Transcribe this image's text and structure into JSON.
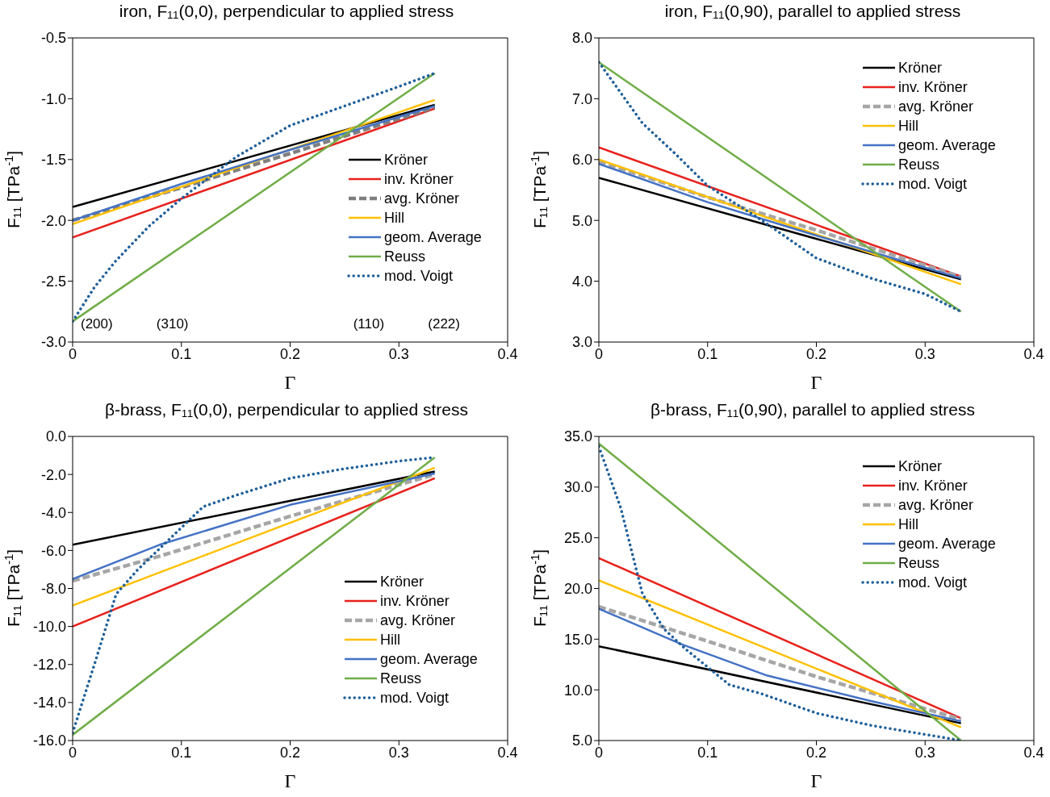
{
  "chart_data": [
    {
      "type": "line",
      "title": "iron, F₁₁(0,0), perpendicular to applied stress",
      "xlabel": "Γ",
      "ylabel": "F₁₁ [TPa$^{-1}$]",
      "xlim": [
        0,
        0.4
      ],
      "xticks": [
        0,
        0.1,
        0.2,
        0.3,
        0.4
      ],
      "ylim": [
        -3,
        -0.5
      ],
      "yticks": [
        {
          "value": -3,
          "label": "-3.0"
        },
        {
          "value": -2.5,
          "label": "-2.5"
        },
        {
          "value": -2,
          "label": "-2.0"
        },
        {
          "value": -1.5,
          "label": "-1.5"
        },
        {
          "value": -1,
          "label": "-1.0"
        },
        {
          "value": -0.5,
          "label": "-0.5"
        }
      ],
      "grid": false,
      "legend": "right",
      "marker": "none",
      "annotations": [
        "(200)",
        "(310)",
        "(110)",
        "(222)"
      ],
      "series": [
        {
          "name": "Kröner",
          "color": "#000000",
          "line_style": "solid",
          "x": [
            0,
            0.333
          ],
          "values": [
            -1.89,
            -1.05
          ]
        },
        {
          "name": "inv. Kröner",
          "color": "#e8211c",
          "line_style": "solid",
          "x": [
            0,
            0.333
          ],
          "values": [
            -2.14,
            -1.08
          ]
        },
        {
          "name": "avg. Kröner",
          "color": "#7f7f7f",
          "line_style": "dashed",
          "x": [
            0,
            0.1,
            0.2,
            0.333
          ],
          "values": [
            -2.0,
            -1.73,
            -1.45,
            -1.07
          ]
        },
        {
          "name": "Hill",
          "color": "#ffc000",
          "line_style": "solid",
          "x": [
            0,
            0.333
          ],
          "values": [
            -2.03,
            -1.01
          ]
        },
        {
          "name": "geom. Average",
          "color": "#4472c4",
          "line_style": "solid",
          "x": [
            0,
            0.1,
            0.2,
            0.333
          ],
          "values": [
            -2.0,
            -1.7,
            -1.42,
            -1.06
          ]
        },
        {
          "name": "Reuss",
          "color": "#70ad47",
          "line_style": "solid",
          "x": [
            0,
            0.333
          ],
          "values": [
            -2.83,
            -0.79
          ]
        },
        {
          "name": "mod. Voigt",
          "color": "#1f5f99",
          "line_style": "dotted",
          "x": [
            0,
            0.02,
            0.04,
            0.07,
            0.1,
            0.15,
            0.2,
            0.25,
            0.3,
            0.333
          ],
          "values": [
            -2.83,
            -2.55,
            -2.33,
            -2.05,
            -1.82,
            -1.48,
            -1.22,
            -1.06,
            -0.9,
            -0.79
          ]
        }
      ]
    },
    {
      "type": "line",
      "title": "iron, F₁₁(0,90), parallel to applied stress",
      "xlabel": "Γ",
      "ylabel": "F₁₁ [TPa$^{-1}$]",
      "xlim": [
        0,
        0.4
      ],
      "xticks": [
        0,
        0.1,
        0.2,
        0.3,
        0.4
      ],
      "ylim": [
        3,
        8
      ],
      "yticks": [
        {
          "value": 3,
          "label": "3.0"
        },
        {
          "value": 4,
          "label": "4.0"
        },
        {
          "value": 5,
          "label": "5.0"
        },
        {
          "value": 6,
          "label": "6.0"
        },
        {
          "value": 7,
          "label": "7.0"
        },
        {
          "value": 8,
          "label": "8.0"
        }
      ],
      "grid": false,
      "legend": "top right",
      "marker": "none",
      "series": [
        {
          "name": "Kröner",
          "color": "#000000",
          "line_style": "solid",
          "x": [
            0,
            0.333
          ],
          "values": [
            5.7,
            4.03
          ]
        },
        {
          "name": "inv. Kröner",
          "color": "#e8211c",
          "line_style": "solid",
          "x": [
            0,
            0.333
          ],
          "values": [
            6.2,
            4.08
          ]
        },
        {
          "name": "avg. Kröner",
          "color": "#a6a6a6",
          "line_style": "dashed",
          "x": [
            0,
            0.1,
            0.2,
            0.333
          ],
          "values": [
            5.97,
            5.38,
            4.84,
            4.07
          ]
        },
        {
          "name": "Hill",
          "color": "#ffc000",
          "line_style": "solid",
          "x": [
            0,
            0.333
          ],
          "values": [
            6.0,
            3.95
          ]
        },
        {
          "name": "geom. Average",
          "color": "#4472c4",
          "line_style": "solid",
          "x": [
            0,
            0.1,
            0.2,
            0.333
          ],
          "values": [
            5.93,
            5.3,
            4.75,
            4.05
          ]
        },
        {
          "name": "Reuss",
          "color": "#70ad47",
          "line_style": "solid",
          "x": [
            0,
            0.333
          ],
          "values": [
            7.6,
            3.5
          ]
        },
        {
          "name": "mod. Voigt",
          "color": "#1f5f99",
          "line_style": "dotted",
          "x": [
            0,
            0.02,
            0.04,
            0.07,
            0.1,
            0.15,
            0.2,
            0.25,
            0.3,
            0.333
          ],
          "values": [
            7.6,
            7.1,
            6.6,
            6.1,
            5.57,
            5.0,
            4.38,
            4.05,
            3.79,
            3.5
          ]
        }
      ]
    },
    {
      "type": "line",
      "title": "β-brass, F₁₁(0,0), perpendicular to applied stress",
      "xlabel": "Γ",
      "ylabel": "F₁₁ [TPa$^{-1}$]",
      "xlim": [
        0,
        0.4
      ],
      "xticks": [
        0,
        0.1,
        0.2,
        0.3,
        0.4
      ],
      "ylim": [
        -16,
        0
      ],
      "yticks": [
        {
          "value": -16,
          "label": "-16.0"
        },
        {
          "value": -14,
          "label": "-14.0"
        },
        {
          "value": -12,
          "label": "-12.0"
        },
        {
          "value": -10,
          "label": "-10.0"
        },
        {
          "value": -8,
          "label": "-8.0"
        },
        {
          "value": -6,
          "label": "-6.0"
        },
        {
          "value": -4,
          "label": "-4.0"
        },
        {
          "value": -2,
          "label": "-2.0"
        },
        {
          "value": 0,
          "label": "0.0"
        }
      ],
      "grid": false,
      "legend": "bottom right",
      "marker": "none",
      "series": [
        {
          "name": "Kröner",
          "color": "#000000",
          "line_style": "solid",
          "x": [
            0,
            0.333
          ],
          "values": [
            -5.7,
            -1.85
          ]
        },
        {
          "name": "inv. Kröner",
          "color": "#e8211c",
          "line_style": "solid",
          "x": [
            0,
            0.333
          ],
          "values": [
            -10.0,
            -2.2
          ]
        },
        {
          "name": "avg. Kröner",
          "color": "#a6a6a6",
          "line_style": "dashed",
          "x": [
            0,
            0.08,
            0.2,
            0.333
          ],
          "values": [
            -7.6,
            -6.3,
            -4.2,
            -2.0
          ]
        },
        {
          "name": "Hill",
          "color": "#ffc000",
          "line_style": "solid",
          "x": [
            0,
            0.333
          ],
          "values": [
            -8.9,
            -1.65
          ]
        },
        {
          "name": "geom. Average",
          "color": "#4472c4",
          "line_style": "solid",
          "x": [
            0,
            0.08,
            0.2,
            0.333
          ],
          "values": [
            -7.5,
            -5.7,
            -3.6,
            -1.95
          ]
        },
        {
          "name": "Reuss",
          "color": "#70ad47",
          "line_style": "solid",
          "x": [
            0,
            0.333
          ],
          "values": [
            -15.7,
            -1.1
          ]
        },
        {
          "name": "mod. Voigt",
          "color": "#1f5f99",
          "line_style": "dotted",
          "x": [
            0,
            0.02,
            0.04,
            0.06,
            0.1,
            0.12,
            0.15,
            0.2,
            0.25,
            0.3,
            0.333
          ],
          "values": [
            -15.6,
            -12.0,
            -8.3,
            -7.0,
            -4.8,
            -3.7,
            -3.1,
            -2.2,
            -1.7,
            -1.3,
            -1.1
          ]
        }
      ]
    },
    {
      "type": "line",
      "title": "β-brass, F₁₁(0,90), parallel to applied stress",
      "xlabel": "Γ",
      "ylabel": "F₁₁ [TPa$^{-1}$]",
      "xlim": [
        0,
        0.4
      ],
      "xticks": [
        0,
        0.1,
        0.2,
        0.3,
        0.4
      ],
      "ylim": [
        5,
        35
      ],
      "yticks": [
        {
          "value": 5,
          "label": "5.0"
        },
        {
          "value": 10,
          "label": "10.0"
        },
        {
          "value": 15,
          "label": "15.0"
        },
        {
          "value": 20,
          "label": "20.0"
        },
        {
          "value": 25,
          "label": "25.0"
        },
        {
          "value": 30,
          "label": "30.0"
        },
        {
          "value": 35,
          "label": "35.0"
        }
      ],
      "grid": false,
      "legend": "top right",
      "marker": "none",
      "series": [
        {
          "name": "Kröner",
          "color": "#000000",
          "line_style": "solid",
          "x": [
            0,
            0.333
          ],
          "values": [
            14.3,
            6.7
          ]
        },
        {
          "name": "inv. Kröner",
          "color": "#e8211c",
          "line_style": "solid",
          "x": [
            0,
            0.333
          ],
          "values": [
            23.0,
            7.2
          ]
        },
        {
          "name": "avg. Kröner",
          "color": "#a6a6a6",
          "line_style": "dashed",
          "x": [
            0,
            0.1,
            0.2,
            0.333
          ],
          "values": [
            18.2,
            14.8,
            11.3,
            7.1
          ]
        },
        {
          "name": "Hill",
          "color": "#ffc000",
          "line_style": "solid",
          "x": [
            0,
            0.333
          ],
          "values": [
            20.8,
            6.3
          ]
        },
        {
          "name": "geom. Average",
          "color": "#4472c4",
          "line_style": "solid",
          "x": [
            0,
            0.076,
            0.155,
            0.25,
            0.333
          ],
          "values": [
            18.0,
            14.5,
            11.4,
            8.9,
            6.9
          ]
        },
        {
          "name": "Reuss",
          "color": "#70ad47",
          "line_style": "solid",
          "x": [
            0,
            0.333
          ],
          "values": [
            34.3,
            5.0
          ]
        },
        {
          "name": "mod. Voigt",
          "color": "#1f5f99",
          "line_style": "dotted",
          "x": [
            0,
            0.02,
            0.04,
            0.06,
            0.08,
            0.12,
            0.15,
            0.2,
            0.25,
            0.3,
            0.333
          ],
          "values": [
            34.0,
            28.0,
            19.5,
            16.0,
            14.0,
            10.5,
            9.6,
            7.7,
            6.5,
            5.6,
            5.0
          ]
        }
      ]
    }
  ]
}
